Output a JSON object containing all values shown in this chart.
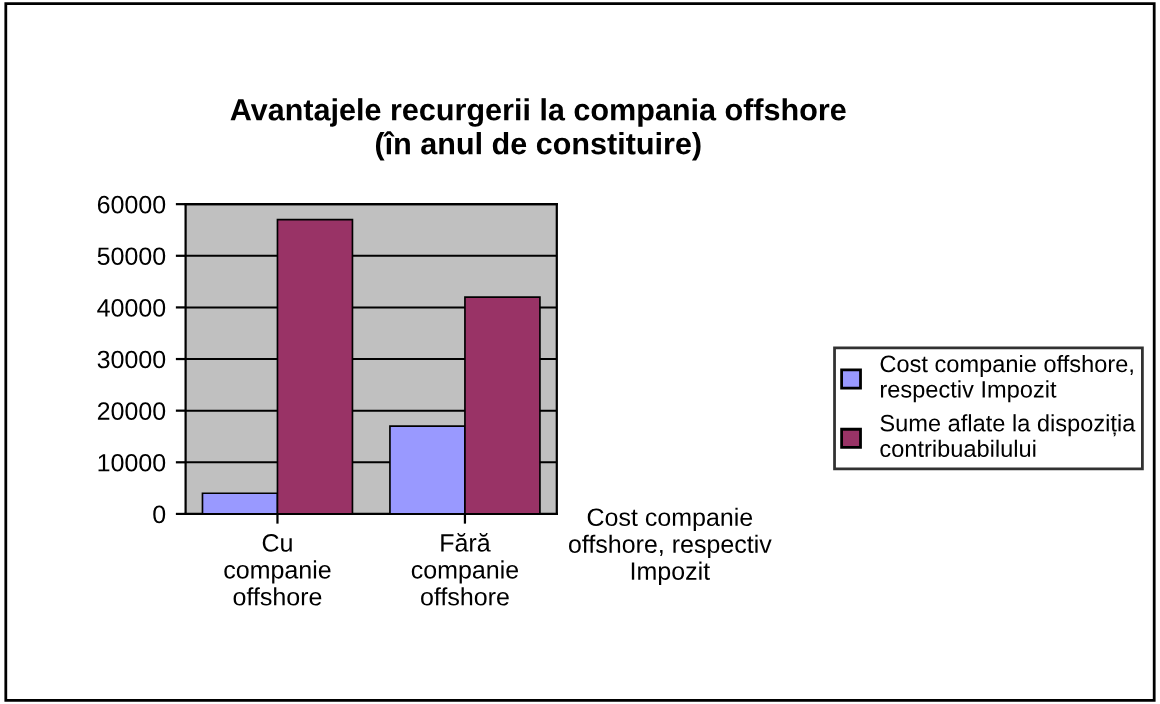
{
  "chart_data": {
    "type": "bar",
    "title": "Avantajele recurgerii la compania offshore\n(în anul de constituire)",
    "categories": [
      "Cu\ncompanie\noffshore",
      "Fără\ncompanie\noffshore"
    ],
    "series": [
      {
        "name": "Cost companie offshore,\nrespectiv Impozit",
        "color": "#9999ff",
        "values": [
          4000,
          17000
        ]
      },
      {
        "name": "Sume aflate la dispoziția\ncontribuabilului",
        "color": "#993366",
        "values": [
          57000,
          42000
        ]
      }
    ],
    "annotations": [
      "Cost companie\noffshore, respectiv\nImpozit"
    ],
    "ylim": [
      0,
      60000
    ],
    "yticks": [
      0,
      10000,
      20000,
      30000,
      40000,
      50000,
      60000
    ],
    "grid": "y",
    "legend": "right"
  }
}
